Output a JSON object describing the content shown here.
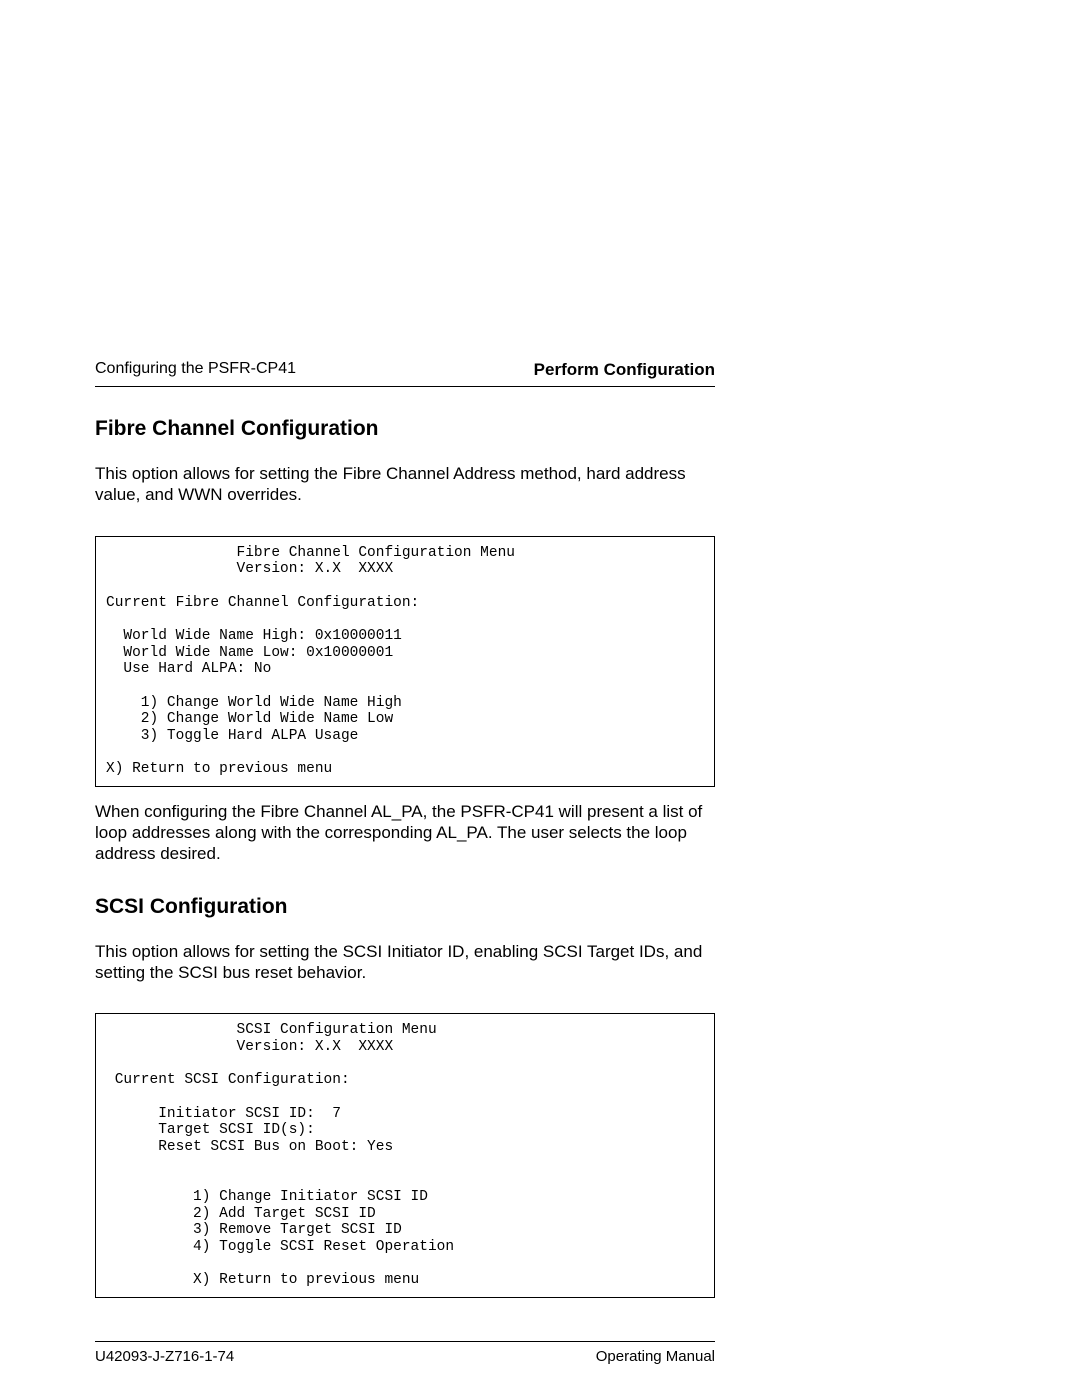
{
  "header": {
    "left": "Configuring the PSFR-CP41",
    "right": "Perform Configuration"
  },
  "section1": {
    "heading": "Fibre Channel Configuration",
    "intro": "This option allows for setting the Fibre Channel Address method, hard address value, and WWN overrides.",
    "menu": "               Fibre Channel Configuration Menu\n               Version: X.X  XXXX\n\nCurrent Fibre Channel Configuration:\n\n  World Wide Name High: 0x10000011\n  World Wide Name Low: 0x10000001\n  Use Hard ALPA: No\n\n    1) Change World Wide Name High\n    2) Change World Wide Name Low\n    3) Toggle Hard ALPA Usage\n\nX) Return to previous menu",
    "after": "When configuring the Fibre Channel AL_PA, the PSFR-CP41 will present a list of loop addresses along with the corresponding AL_PA. The user selects the loop address desired."
  },
  "section2": {
    "heading": "SCSI Configuration",
    "intro": "This option allows for setting the SCSI Initiator ID, enabling SCSI Target IDs, and setting the SCSI bus reset behavior.",
    "menu": "               SCSI Configuration Menu\n               Version: X.X  XXXX\n\n Current SCSI Configuration:\n\n      Initiator SCSI ID:  7\n      Target SCSI ID(s):\n      Reset SCSI Bus on Boot: Yes\n\n\n          1) Change Initiator SCSI ID\n          2) Add Target SCSI ID\n          3) Remove Target SCSI ID\n          4) Toggle SCSI Reset Operation\n\n          X) Return to previous menu"
  },
  "footer": {
    "left": "U42093-J-Z716-1-74",
    "right": "Operating Manual"
  }
}
